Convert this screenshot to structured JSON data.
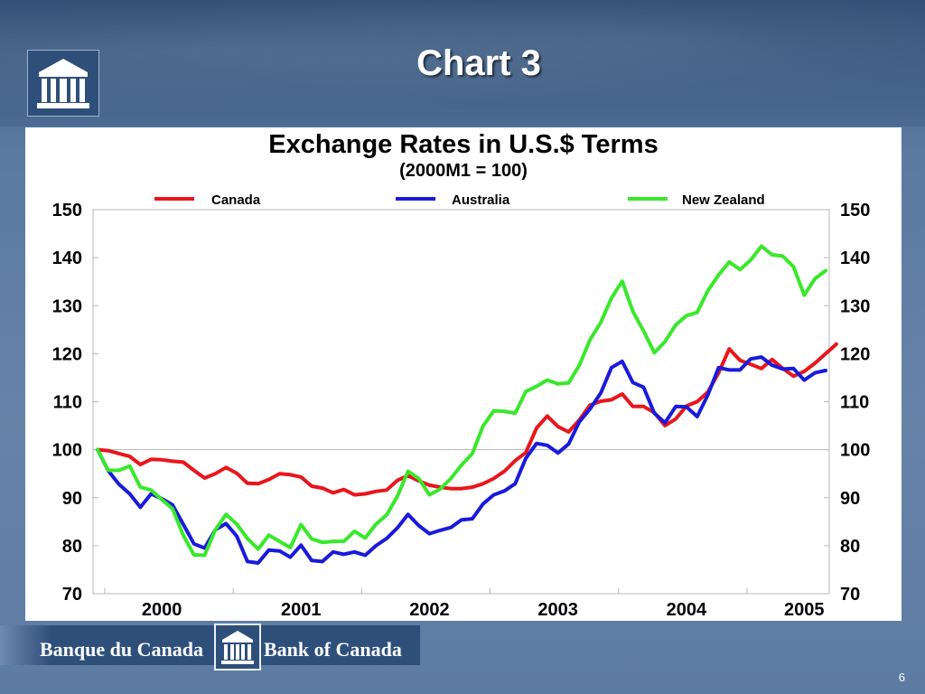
{
  "slide": {
    "title": "Chart 3",
    "page_number": "6",
    "footer_left": "Banque du Canada",
    "footer_right": "Bank of Canada"
  },
  "chart_data": {
    "type": "line",
    "title": "Exchange Rates in U.S.$ Terms",
    "subtitle": "(2000M1 = 100)",
    "xlabel": "",
    "ylabel": "",
    "ylim": [
      70,
      150
    ],
    "yticks": [
      150,
      140,
      130,
      120,
      110,
      100,
      90,
      80,
      70
    ],
    "x_ticks": [
      "2000",
      "2001",
      "2002",
      "2003",
      "2004",
      "2005"
    ],
    "legend_position": "top",
    "grid": "horizontal line at 100 only",
    "series": [
      {
        "name": "Canada",
        "color": "#e8161b",
        "values": [
          100,
          99.8,
          99.2,
          98.6,
          96.9,
          98.0,
          97.9,
          97.6,
          97.4,
          95.7,
          94.1,
          95.0,
          96.3,
          95.1,
          93.0,
          92.9,
          93.8,
          95.0,
          94.8,
          94.3,
          92.4,
          92.0,
          91.0,
          91.7,
          90.6,
          90.8,
          91.3,
          91.6,
          93.6,
          94.6,
          93.5,
          92.6,
          92.2,
          91.9,
          91.9,
          92.2,
          92.9,
          94.0,
          95.5,
          97.7,
          99.4,
          104.5,
          107.0,
          104.8,
          103.7,
          106.2,
          109.3,
          110.1,
          110.4,
          111.6,
          109.0,
          109.0,
          107.7,
          105.0,
          106.4,
          109.1,
          110.0,
          112.0,
          116.0,
          121.0,
          118.6,
          117.8,
          116.9,
          118.8,
          116.9,
          115.3,
          116.3,
          118.0,
          120.0,
          122.0
        ]
      },
      {
        "name": "Australia",
        "color": "#1a1adb",
        "values": [
          100,
          95.6,
          92.8,
          90.8,
          88.0,
          90.8,
          89.8,
          88.5,
          84.5,
          80.4,
          79.5,
          83.3,
          84.6,
          82.0,
          76.7,
          76.4,
          79.1,
          78.9,
          77.6,
          80.1,
          76.9,
          76.7,
          78.7,
          78.2,
          78.7,
          78.0,
          80.0,
          81.5,
          83.7,
          86.5,
          84.2,
          82.5,
          83.2,
          83.8,
          85.4,
          85.6,
          88.7,
          90.6,
          91.4,
          92.9,
          98.2,
          101.3,
          100.9,
          99.3,
          101.2,
          105.8,
          108.5,
          111.8,
          117.1,
          118.4,
          114.0,
          113.0,
          107.6,
          105.6,
          109.0,
          108.9,
          106.9,
          111.4,
          117.1,
          116.6,
          116.6,
          118.9,
          119.3,
          117.6,
          116.8,
          116.9,
          114.5,
          116.0,
          116.5
        ]
      },
      {
        "name": "New Zealand",
        "color": "#39e82b",
        "values": [
          100,
          95.7,
          95.7,
          96.6,
          92.2,
          91.6,
          89.6,
          87.7,
          82.2,
          78.1,
          78.0,
          83.3,
          86.5,
          84.5,
          81.5,
          79.3,
          82.2,
          80.9,
          79.6,
          84.4,
          81.4,
          80.7,
          80.9,
          80.9,
          83.0,
          81.6,
          84.5,
          86.4,
          90.3,
          95.5,
          94.0,
          90.6,
          91.8,
          94.0,
          96.8,
          99.2,
          104.9,
          108.1,
          108.0,
          107.6,
          112.1,
          113.2,
          114.5,
          113.7,
          113.9,
          117.6,
          122.9,
          126.5,
          131.6,
          135.1,
          128.8,
          124.7,
          120.2,
          122.5,
          126.0,
          127.9,
          128.6,
          133.1,
          136.4,
          139.1,
          137.5,
          139.5,
          142.4,
          140.6,
          140.3,
          138.1,
          132.2,
          135.6,
          137.3
        ]
      }
    ]
  }
}
